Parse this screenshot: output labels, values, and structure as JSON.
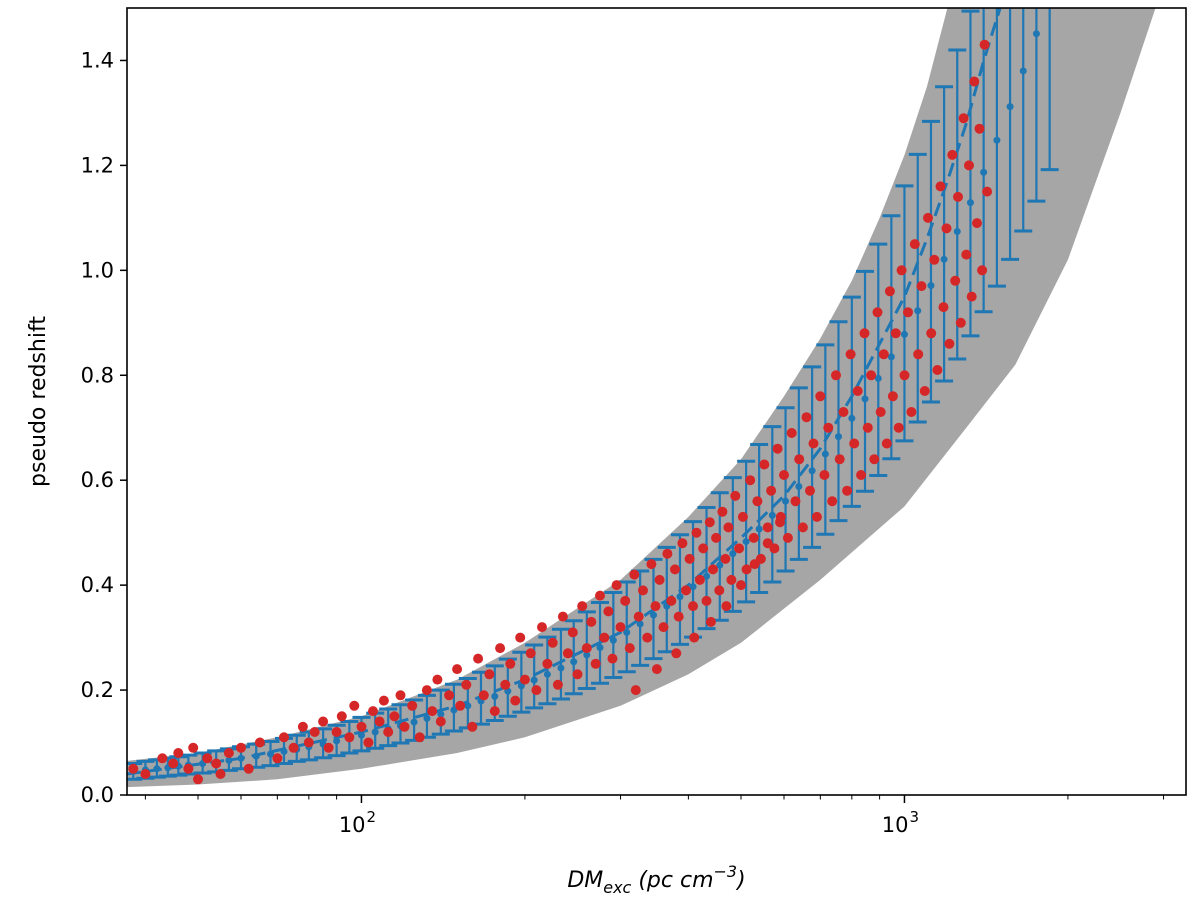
{
  "chart_data": {
    "type": "scatter",
    "title": "",
    "xlabel": {
      "base": "DM",
      "sub": "exc",
      "unit": "pc cm",
      "sup": "−3"
    },
    "ylabel": "pseudo redshift",
    "xscale": "log",
    "xlim": [
      37,
      3300
    ],
    "ylim": [
      0,
      1.5
    ],
    "x_ticks": [
      {
        "value": 100,
        "base": "10",
        "exp": "2"
      },
      {
        "value": 1000,
        "base": "10",
        "exp": "3"
      }
    ],
    "y_ticks": [
      {
        "value": 0.0,
        "label": "0.0"
      },
      {
        "value": 0.2,
        "label": "0.2"
      },
      {
        "value": 0.4,
        "label": "0.4"
      },
      {
        "value": 0.6,
        "label": "0.6"
      },
      {
        "value": 0.8,
        "label": "0.8"
      },
      {
        "value": 1.0,
        "label": "1.0"
      },
      {
        "value": 1.2,
        "label": "1.2"
      },
      {
        "value": 1.4,
        "label": "1.4"
      }
    ],
    "grid": false,
    "legend": "none",
    "band": {
      "color": "#a6a6a6",
      "lower": [
        [
          37,
          0.015
        ],
        [
          50,
          0.02
        ],
        [
          70,
          0.03
        ],
        [
          100,
          0.05
        ],
        [
          150,
          0.08
        ],
        [
          200,
          0.11
        ],
        [
          300,
          0.17
        ],
        [
          400,
          0.23
        ],
        [
          500,
          0.29
        ],
        [
          700,
          0.41
        ],
        [
          1000,
          0.55
        ],
        [
          1300,
          0.7
        ],
        [
          1600,
          0.82
        ],
        [
          2000,
          1.02
        ],
        [
          2500,
          1.3
        ],
        [
          2900,
          1.5
        ]
      ],
      "upper": [
        [
          37,
          0.065
        ],
        [
          50,
          0.08
        ],
        [
          70,
          0.11
        ],
        [
          100,
          0.15
        ],
        [
          150,
          0.22
        ],
        [
          200,
          0.29
        ],
        [
          300,
          0.41
        ],
        [
          400,
          0.53
        ],
        [
          500,
          0.64
        ],
        [
          600,
          0.76
        ],
        [
          700,
          0.87
        ],
        [
          800,
          0.98
        ],
        [
          900,
          1.1
        ],
        [
          1000,
          1.22
        ],
        [
          1100,
          1.35
        ],
        [
          1200,
          1.5
        ]
      ]
    },
    "fit_series": {
      "color": "#1f77b4",
      "line": [
        [
          37,
          0.04
        ],
        [
          60,
          0.07
        ],
        [
          100,
          0.12
        ],
        [
          150,
          0.17
        ],
        [
          200,
          0.22
        ],
        [
          300,
          0.31
        ],
        [
          400,
          0.4
        ],
        [
          500,
          0.49
        ],
        [
          600,
          0.57
        ],
        [
          700,
          0.66
        ],
        [
          800,
          0.76
        ],
        [
          900,
          0.86
        ],
        [
          1000,
          0.95
        ],
        [
          1100,
          1.06
        ],
        [
          1200,
          1.17
        ],
        [
          1300,
          1.28
        ],
        [
          1400,
          1.4
        ],
        [
          1500,
          1.5
        ]
      ],
      "errorbars": [
        [
          38,
          0.045,
          0.03,
          0.06
        ],
        [
          40,
          0.048,
          0.032,
          0.064
        ],
        [
          42,
          0.05,
          0.034,
          0.067
        ],
        [
          44,
          0.052,
          0.036,
          0.07
        ],
        [
          46,
          0.055,
          0.038,
          0.073
        ],
        [
          48,
          0.057,
          0.04,
          0.076
        ],
        [
          51,
          0.06,
          0.042,
          0.08
        ],
        [
          54,
          0.063,
          0.044,
          0.084
        ],
        [
          57,
          0.066,
          0.047,
          0.088
        ],
        [
          60,
          0.07,
          0.05,
          0.092
        ],
        [
          64,
          0.074,
          0.053,
          0.097
        ],
        [
          68,
          0.078,
          0.056,
          0.102
        ],
        [
          72,
          0.083,
          0.06,
          0.108
        ],
        [
          76,
          0.087,
          0.064,
          0.114
        ],
        [
          80,
          0.092,
          0.067,
          0.12
        ],
        [
          85,
          0.097,
          0.071,
          0.126
        ],
        [
          90,
          0.103,
          0.075,
          0.133
        ],
        [
          95,
          0.108,
          0.08,
          0.14
        ],
        [
          100,
          0.114,
          0.084,
          0.148
        ],
        [
          106,
          0.12,
          0.089,
          0.156
        ],
        [
          112,
          0.126,
          0.094,
          0.164
        ],
        [
          118,
          0.132,
          0.099,
          0.172
        ],
        [
          125,
          0.139,
          0.104,
          0.181
        ],
        [
          132,
          0.146,
          0.11,
          0.19
        ],
        [
          140,
          0.154,
          0.116,
          0.2
        ],
        [
          148,
          0.162,
          0.122,
          0.211
        ],
        [
          157,
          0.17,
          0.128,
          0.222
        ],
        [
          166,
          0.179,
          0.135,
          0.234
        ],
        [
          176,
          0.188,
          0.142,
          0.246
        ],
        [
          186,
          0.198,
          0.15,
          0.259
        ],
        [
          197,
          0.208,
          0.158,
          0.272
        ],
        [
          208,
          0.219,
          0.166,
          0.286
        ],
        [
          220,
          0.23,
          0.174,
          0.301
        ],
        [
          233,
          0.242,
          0.183,
          0.316
        ],
        [
          246,
          0.254,
          0.193,
          0.332
        ],
        [
          260,
          0.267,
          0.203,
          0.349
        ],
        [
          275,
          0.281,
          0.213,
          0.367
        ],
        [
          291,
          0.295,
          0.224,
          0.386
        ],
        [
          308,
          0.31,
          0.235,
          0.406
        ],
        [
          326,
          0.326,
          0.247,
          0.427
        ],
        [
          345,
          0.343,
          0.26,
          0.449
        ],
        [
          365,
          0.36,
          0.273,
          0.472
        ],
        [
          386,
          0.378,
          0.287,
          0.496
        ],
        [
          408,
          0.397,
          0.301,
          0.521
        ],
        [
          432,
          0.417,
          0.317,
          0.548
        ],
        [
          457,
          0.438,
          0.333,
          0.576
        ],
        [
          483,
          0.46,
          0.35,
          0.605
        ],
        [
          511,
          0.483,
          0.368,
          0.636
        ],
        [
          540,
          0.507,
          0.386,
          0.668
        ],
        [
          571,
          0.533,
          0.406,
          0.702
        ],
        [
          604,
          0.56,
          0.427,
          0.738
        ],
        [
          639,
          0.588,
          0.449,
          0.776
        ],
        [
          676,
          0.618,
          0.472,
          0.816
        ],
        [
          715,
          0.65,
          0.497,
          0.858
        ],
        [
          756,
          0.683,
          0.523,
          0.902
        ],
        [
          800,
          0.718,
          0.55,
          0.949
        ],
        [
          846,
          0.755,
          0.579,
          0.998
        ],
        [
          895,
          0.794,
          0.609,
          1.05
        ],
        [
          946,
          0.835,
          0.641,
          1.104
        ],
        [
          1000,
          0.878,
          0.675,
          1.161
        ],
        [
          1058,
          0.923,
          0.711,
          1.221
        ],
        [
          1119,
          0.971,
          0.749,
          1.284
        ],
        [
          1183,
          1.021,
          0.789,
          1.35
        ],
        [
          1251,
          1.074,
          0.831,
          1.42
        ],
        [
          1323,
          1.129,
          0.875,
          1.494
        ],
        [
          1399,
          1.187,
          0.921,
          1.571
        ],
        [
          1480,
          1.248,
          0.97,
          1.652
        ],
        [
          1565,
          1.312,
          1.021,
          1.737
        ],
        [
          1655,
          1.38,
          1.075,
          1.826
        ],
        [
          1750,
          1.451,
          1.132,
          1.92
        ],
        [
          1851,
          1.526,
          1.192,
          2.019
        ]
      ]
    },
    "scatter_series": {
      "color": "#d62728",
      "points": [
        [
          38,
          0.05
        ],
        [
          40,
          0.04
        ],
        [
          43,
          0.07
        ],
        [
          45,
          0.06
        ],
        [
          46,
          0.08
        ],
        [
          48,
          0.05
        ],
        [
          49,
          0.09
        ],
        [
          50,
          0.03
        ],
        [
          52,
          0.07
        ],
        [
          54,
          0.06
        ],
        [
          55,
          0.04
        ],
        [
          57,
          0.08
        ],
        [
          60,
          0.09
        ],
        [
          62,
          0.05
        ],
        [
          65,
          0.1
        ],
        [
          70,
          0.07
        ],
        [
          72,
          0.11
        ],
        [
          75,
          0.09
        ],
        [
          78,
          0.13
        ],
        [
          80,
          0.1
        ],
        [
          82,
          0.12
        ],
        [
          85,
          0.14
        ],
        [
          87,
          0.09
        ],
        [
          90,
          0.12
        ],
        [
          92,
          0.15
        ],
        [
          95,
          0.11
        ],
        [
          97,
          0.17
        ],
        [
          100,
          0.13
        ],
        [
          103,
          0.1
        ],
        [
          105,
          0.16
        ],
        [
          108,
          0.14
        ],
        [
          110,
          0.18
        ],
        [
          112,
          0.12
        ],
        [
          115,
          0.15
        ],
        [
          118,
          0.19
        ],
        [
          120,
          0.13
        ],
        [
          124,
          0.17
        ],
        [
          128,
          0.11
        ],
        [
          132,
          0.2
        ],
        [
          135,
          0.16
        ],
        [
          138,
          0.22
        ],
        [
          140,
          0.14
        ],
        [
          145,
          0.19
        ],
        [
          150,
          0.24
        ],
        [
          152,
          0.17
        ],
        [
          156,
          0.21
        ],
        [
          160,
          0.13
        ],
        [
          164,
          0.26
        ],
        [
          168,
          0.19
        ],
        [
          172,
          0.23
        ],
        [
          176,
          0.16
        ],
        [
          180,
          0.28
        ],
        [
          184,
          0.21
        ],
        [
          188,
          0.25
        ],
        [
          192,
          0.18
        ],
        [
          196,
          0.3
        ],
        [
          200,
          0.22
        ],
        [
          205,
          0.27
        ],
        [
          210,
          0.2
        ],
        [
          215,
          0.32
        ],
        [
          220,
          0.25
        ],
        [
          225,
          0.29
        ],
        [
          230,
          0.21
        ],
        [
          235,
          0.34
        ],
        [
          240,
          0.27
        ],
        [
          245,
          0.31
        ],
        [
          250,
          0.23
        ],
        [
          255,
          0.36
        ],
        [
          260,
          0.28
        ],
        [
          265,
          0.33
        ],
        [
          270,
          0.25
        ],
        [
          275,
          0.38
        ],
        [
          280,
          0.3
        ],
        [
          285,
          0.35
        ],
        [
          290,
          0.26
        ],
        [
          295,
          0.4
        ],
        [
          300,
          0.32
        ],
        [
          306,
          0.37
        ],
        [
          312,
          0.28
        ],
        [
          318,
          0.42
        ],
        [
          324,
          0.34
        ],
        [
          330,
          0.39
        ],
        [
          336,
          0.3
        ],
        [
          342,
          0.44
        ],
        [
          348,
          0.36
        ],
        [
          354,
          0.41
        ],
        [
          360,
          0.32
        ],
        [
          366,
          0.46
        ],
        [
          372,
          0.37
        ],
        [
          378,
          0.43
        ],
        [
          384,
          0.34
        ],
        [
          390,
          0.48
        ],
        [
          396,
          0.39
        ],
        [
          402,
          0.45
        ],
        [
          408,
          0.36
        ],
        [
          414,
          0.5
        ],
        [
          420,
          0.41
        ],
        [
          426,
          0.47
        ],
        [
          432,
          0.37
        ],
        [
          438,
          0.52
        ],
        [
          444,
          0.43
        ],
        [
          450,
          0.49
        ],
        [
          456,
          0.39
        ],
        [
          462,
          0.54
        ],
        [
          468,
          0.45
        ],
        [
          474,
          0.51
        ],
        [
          480,
          0.41
        ],
        [
          488,
          0.57
        ],
        [
          496,
          0.47
        ],
        [
          504,
          0.53
        ],
        [
          512,
          0.43
        ],
        [
          520,
          0.6
        ],
        [
          528,
          0.49
        ],
        [
          536,
          0.56
        ],
        [
          544,
          0.45
        ],
        [
          552,
          0.63
        ],
        [
          560,
          0.51
        ],
        [
          568,
          0.58
        ],
        [
          576,
          0.47
        ],
        [
          584,
          0.66
        ],
        [
          592,
          0.53
        ],
        [
          600,
          0.61
        ],
        [
          610,
          0.49
        ],
        [
          620,
          0.69
        ],
        [
          630,
          0.56
        ],
        [
          640,
          0.64
        ],
        [
          650,
          0.51
        ],
        [
          660,
          0.72
        ],
        [
          670,
          0.58
        ],
        [
          680,
          0.67
        ],
        [
          690,
          0.53
        ],
        [
          700,
          0.76
        ],
        [
          712,
          0.61
        ],
        [
          724,
          0.7
        ],
        [
          736,
          0.56
        ],
        [
          748,
          0.8
        ],
        [
          760,
          0.64
        ],
        [
          772,
          0.73
        ],
        [
          784,
          0.58
        ],
        [
          796,
          0.84
        ],
        [
          808,
          0.67
        ],
        [
          820,
          0.77
        ],
        [
          832,
          0.61
        ],
        [
          844,
          0.88
        ],
        [
          856,
          0.7
        ],
        [
          868,
          0.8
        ],
        [
          880,
          0.64
        ],
        [
          892,
          0.92
        ],
        [
          904,
          0.73
        ],
        [
          916,
          0.84
        ],
        [
          928,
          0.67
        ],
        [
          940,
          0.96
        ],
        [
          952,
          0.76
        ],
        [
          964,
          0.88
        ],
        [
          976,
          0.7
        ],
        [
          988,
          1.0
        ],
        [
          1000,
          0.8
        ],
        [
          1015,
          0.92
        ],
        [
          1030,
          0.73
        ],
        [
          1045,
          1.05
        ],
        [
          1060,
          0.84
        ],
        [
          1075,
          0.97
        ],
        [
          1090,
          0.77
        ],
        [
          1105,
          1.1
        ],
        [
          1120,
          0.88
        ],
        [
          1135,
          1.02
        ],
        [
          1150,
          0.81
        ],
        [
          1165,
          1.16
        ],
        [
          1180,
          0.93
        ],
        [
          1195,
          1.08
        ],
        [
          1210,
          0.86
        ],
        [
          1225,
          1.22
        ],
        [
          1240,
          0.98
        ],
        [
          1255,
          1.14
        ],
        [
          1270,
          0.9
        ],
        [
          1285,
          1.29
        ],
        [
          1300,
          1.03
        ],
        [
          1315,
          1.2
        ],
        [
          1330,
          0.95
        ],
        [
          1345,
          1.36
        ],
        [
          1360,
          1.09
        ],
        [
          1375,
          1.27
        ],
        [
          1390,
          1.0
        ],
        [
          1405,
          1.43
        ],
        [
          1420,
          1.15
        ],
        [
          320,
          0.2
        ],
        [
          350,
          0.24
        ],
        [
          380,
          0.27
        ],
        [
          410,
          0.3
        ],
        [
          440,
          0.33
        ],
        [
          470,
          0.36
        ],
        [
          500,
          0.4
        ],
        [
          530,
          0.44
        ],
        [
          560,
          0.48
        ],
        [
          590,
          0.52
        ]
      ]
    }
  }
}
